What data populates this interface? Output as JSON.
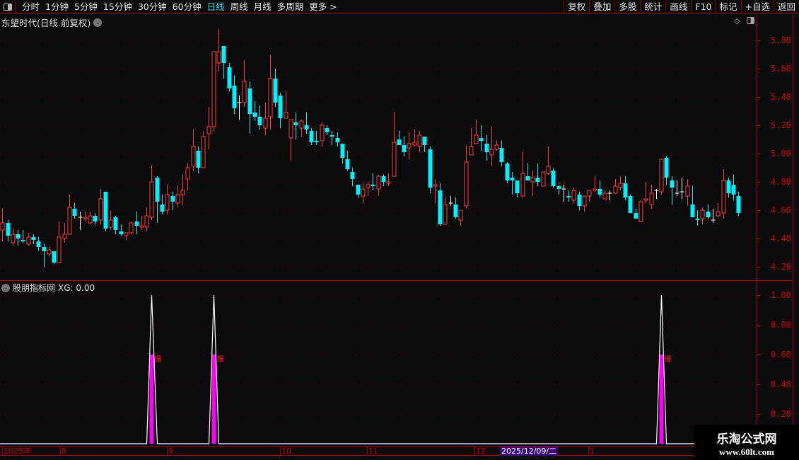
{
  "toolbar": {
    "tabs": [
      "分时",
      "1分钟",
      "5分钟",
      "15分钟",
      "30分钟",
      "60分钟",
      "日线",
      "周线",
      "月线",
      "多周期",
      "更多 >"
    ],
    "active_tab": "日线",
    "right_buttons": [
      "复权",
      "叠加",
      "多股",
      "统计",
      "画线",
      "F10",
      "标记",
      "+自选",
      "返回"
    ]
  },
  "chart_title": "东望时代(日线.前复权)",
  "indicator_title": "股朋指标网",
  "indicator_value": "XG: 0.00",
  "signal_label": "爆",
  "colors": {
    "up": "#ff3c3c",
    "down": "#00f0ff",
    "doji": "#ffffff",
    "signal_bar": "#ff00ff",
    "axis": "#d00000",
    "grid": "#5a0000"
  },
  "price_axis": [
    "5.80",
    "5.60",
    "5.40",
    "5.20",
    "5.00",
    "4.80",
    "4.60",
    "4.40",
    "4.20"
  ],
  "indicator_axis": [
    "1.00",
    "0.80",
    "0.60",
    "0.40",
    "0.20"
  ],
  "date_axis": [
    "2025年",
    "8",
    "9",
    "10",
    "11",
    "12",
    "2025/12/09/二",
    "1"
  ],
  "watermark": {
    "name": "乐淘公式网",
    "url": "www.60lt.com"
  },
  "chart_data": {
    "type": "candlestick",
    "ylim": [
      4.2,
      5.8
    ],
    "indicator_ylim": [
      0,
      1
    ],
    "signal_bar_value": 0.6,
    "candles_ohlc_xg": [
      [
        4.46,
        4.61,
        4.38,
        4.51,
        0
      ],
      [
        4.51,
        4.53,
        4.38,
        4.42,
        0
      ],
      [
        4.37,
        4.47,
        4.35,
        4.43,
        0
      ],
      [
        4.43,
        4.46,
        4.35,
        4.4,
        0
      ],
      [
        4.39,
        4.46,
        4.37,
        4.38,
        0
      ],
      [
        4.36,
        4.44,
        4.35,
        4.41,
        0
      ],
      [
        4.41,
        4.43,
        4.36,
        4.39,
        0
      ],
      [
        4.38,
        4.41,
        4.31,
        4.34,
        0
      ],
      [
        4.34,
        4.36,
        4.2,
        4.31,
        0
      ],
      [
        4.29,
        4.34,
        4.27,
        4.32,
        0
      ],
      [
        4.31,
        4.31,
        4.22,
        4.23,
        0
      ],
      [
        4.23,
        4.52,
        4.23,
        4.41,
        0
      ],
      [
        4.4,
        4.51,
        4.37,
        4.43,
        0
      ],
      [
        4.43,
        4.71,
        4.43,
        4.62,
        0
      ],
      [
        4.61,
        4.65,
        4.54,
        4.56,
        0
      ],
      [
        4.55,
        4.59,
        4.46,
        4.55,
        0
      ],
      [
        4.54,
        4.59,
        4.52,
        4.55,
        0
      ],
      [
        4.51,
        4.59,
        4.5,
        4.56,
        0
      ],
      [
        4.56,
        4.58,
        4.5,
        4.52,
        0
      ],
      [
        4.53,
        4.75,
        4.5,
        4.68,
        0
      ],
      [
        4.73,
        4.73,
        4.45,
        4.47,
        0
      ],
      [
        4.48,
        4.6,
        4.46,
        4.53,
        0
      ],
      [
        4.55,
        4.56,
        4.43,
        4.46,
        0
      ],
      [
        4.45,
        4.5,
        4.42,
        4.43,
        0
      ],
      [
        4.42,
        4.44,
        4.39,
        4.44,
        0
      ],
      [
        4.44,
        4.52,
        4.43,
        4.51,
        0
      ],
      [
        4.52,
        4.59,
        4.43,
        4.49,
        0
      ],
      [
        4.48,
        4.56,
        4.46,
        4.49,
        0
      ],
      [
        4.48,
        4.62,
        4.45,
        4.56,
        0
      ],
      [
        4.55,
        4.92,
        4.53,
        4.8,
        1
      ],
      [
        4.83,
        4.84,
        4.51,
        4.66,
        0
      ],
      [
        4.64,
        4.71,
        4.57,
        4.59,
        0
      ],
      [
        4.6,
        4.78,
        4.57,
        4.71,
        0
      ],
      [
        4.7,
        4.73,
        4.6,
        4.66,
        0
      ],
      [
        4.65,
        4.77,
        4.62,
        4.71,
        0
      ],
      [
        4.71,
        4.85,
        4.64,
        4.74,
        0
      ],
      [
        4.82,
        4.93,
        4.74,
        4.9,
        0
      ],
      [
        4.91,
        5.17,
        4.88,
        5.05,
        0
      ],
      [
        5.02,
        5.05,
        4.86,
        4.9,
        0
      ],
      [
        4.9,
        5.16,
        4.9,
        5.12,
        0
      ],
      [
        5.14,
        5.33,
        5.03,
        5.19,
        0
      ],
      [
        5.19,
        5.72,
        5.16,
        5.72,
        1
      ],
      [
        5.64,
        5.88,
        5.58,
        5.72,
        0
      ],
      [
        5.76,
        5.76,
        5.53,
        5.64,
        0
      ],
      [
        5.61,
        5.64,
        5.44,
        5.46,
        0
      ],
      [
        5.48,
        5.55,
        5.28,
        5.32,
        0
      ],
      [
        5.36,
        5.41,
        5.24,
        5.36,
        0
      ],
      [
        5.36,
        5.66,
        5.33,
        5.51,
        0
      ],
      [
        5.46,
        5.51,
        5.14,
        5.28,
        0
      ],
      [
        5.29,
        5.37,
        5.23,
        5.26,
        0
      ],
      [
        5.26,
        5.34,
        5.17,
        5.2,
        0
      ],
      [
        5.18,
        5.36,
        5.13,
        5.25,
        0
      ],
      [
        5.26,
        5.7,
        5.17,
        5.53,
        0
      ],
      [
        5.53,
        5.6,
        5.33,
        5.36,
        0
      ],
      [
        5.41,
        5.43,
        5.18,
        5.25,
        0
      ],
      [
        5.25,
        5.44,
        5.25,
        5.29,
        0
      ],
      [
        5.11,
        5.24,
        4.95,
        5.24,
        0
      ],
      [
        5.22,
        5.29,
        5.1,
        5.2,
        0
      ],
      [
        5.18,
        5.24,
        5.12,
        5.23,
        0
      ],
      [
        5.2,
        5.29,
        5.14,
        5.17,
        0
      ],
      [
        5.16,
        5.18,
        5.06,
        5.08,
        0
      ],
      [
        5.09,
        5.16,
        5.06,
        5.08,
        0
      ],
      [
        5.09,
        5.22,
        5.05,
        5.2,
        0
      ],
      [
        5.18,
        5.2,
        5.13,
        5.15,
        0
      ],
      [
        5.13,
        5.16,
        5.06,
        5.12,
        0
      ],
      [
        5.11,
        5.15,
        5.05,
        5.08,
        0
      ],
      [
        5.07,
        5.07,
        4.93,
        4.97,
        0
      ],
      [
        4.96,
        5.02,
        4.88,
        4.89,
        0
      ],
      [
        4.87,
        4.9,
        4.77,
        4.82,
        0
      ],
      [
        4.78,
        4.78,
        4.69,
        4.71,
        0
      ],
      [
        4.7,
        4.79,
        4.65,
        4.75,
        0
      ],
      [
        4.76,
        4.8,
        4.7,
        4.78,
        0
      ],
      [
        4.78,
        4.86,
        4.74,
        4.77,
        0
      ],
      [
        4.75,
        4.85,
        4.7,
        4.84,
        0
      ],
      [
        4.84,
        4.85,
        4.77,
        4.8,
        0
      ],
      [
        4.79,
        4.86,
        4.77,
        4.8,
        0
      ],
      [
        4.84,
        5.29,
        4.84,
        5.08,
        0
      ],
      [
        5.1,
        5.16,
        5.06,
        5.06,
        0
      ],
      [
        5.06,
        5.12,
        4.98,
        5.01,
        0
      ],
      [
        5.04,
        5.15,
        4.96,
        5.07,
        0
      ],
      [
        5.06,
        5.17,
        5.05,
        5.08,
        0
      ],
      [
        5.05,
        5.16,
        5.01,
        5.13,
        0
      ],
      [
        5.12,
        5.12,
        5.01,
        5.06,
        0
      ],
      [
        5.03,
        5.05,
        4.72,
        4.76,
        0
      ],
      [
        4.77,
        4.82,
        4.65,
        4.78,
        0
      ],
      [
        4.74,
        4.79,
        4.49,
        4.5,
        0
      ],
      [
        4.5,
        4.69,
        4.5,
        4.64,
        0
      ],
      [
        4.65,
        4.7,
        4.63,
        4.65,
        0
      ],
      [
        4.64,
        4.69,
        4.54,
        4.55,
        0
      ],
      [
        4.53,
        4.6,
        4.49,
        4.6,
        0
      ],
      [
        4.63,
        5.06,
        4.61,
        4.94,
        0
      ],
      [
        4.99,
        5.18,
        4.99,
        5.05,
        0
      ],
      [
        5.07,
        5.24,
        5.07,
        5.13,
        0
      ],
      [
        5.11,
        5.2,
        5.02,
        5.09,
        0
      ],
      [
        5.07,
        5.13,
        4.95,
        5.01,
        0
      ],
      [
        4.99,
        5.19,
        4.91,
        5.03,
        0
      ],
      [
        5.03,
        5.09,
        5.02,
        5.06,
        0
      ],
      [
        5.04,
        5.09,
        4.91,
        4.94,
        0
      ],
      [
        4.93,
        4.94,
        4.79,
        4.81,
        0
      ],
      [
        4.83,
        4.87,
        4.71,
        4.81,
        0
      ],
      [
        4.81,
        4.81,
        4.69,
        4.72,
        0
      ],
      [
        4.7,
        5.01,
        4.69,
        4.86,
        0
      ],
      [
        4.84,
        4.93,
        4.81,
        4.81,
        0
      ],
      [
        4.8,
        4.88,
        4.7,
        4.83,
        0
      ],
      [
        4.83,
        4.93,
        4.77,
        4.8,
        0
      ],
      [
        4.77,
        4.87,
        4.77,
        4.87,
        0
      ],
      [
        4.86,
        5.05,
        4.85,
        4.91,
        0
      ],
      [
        4.88,
        4.9,
        4.76,
        4.77,
        0
      ],
      [
        4.77,
        4.78,
        4.71,
        4.75,
        0
      ],
      [
        4.75,
        4.78,
        4.66,
        4.75,
        0
      ],
      [
        4.7,
        4.74,
        4.66,
        4.69,
        0
      ],
      [
        4.67,
        4.76,
        4.65,
        4.74,
        0
      ],
      [
        4.71,
        4.73,
        4.6,
        4.63,
        0
      ],
      [
        4.63,
        4.7,
        4.59,
        4.7,
        0
      ],
      [
        4.7,
        4.74,
        4.66,
        4.74,
        0
      ],
      [
        4.74,
        4.84,
        4.73,
        4.75,
        0
      ],
      [
        4.75,
        4.81,
        4.69,
        4.71,
        0
      ],
      [
        4.68,
        4.74,
        4.68,
        4.72,
        0
      ],
      [
        4.72,
        4.74,
        4.67,
        4.72,
        0
      ],
      [
        4.72,
        4.82,
        4.72,
        4.77,
        0
      ],
      [
        4.76,
        4.84,
        4.74,
        4.79,
        0
      ],
      [
        4.79,
        4.84,
        4.67,
        4.69,
        0
      ],
      [
        4.7,
        4.71,
        4.58,
        4.58,
        0
      ],
      [
        4.58,
        4.61,
        4.54,
        4.54,
        0
      ],
      [
        4.52,
        4.67,
        4.52,
        4.66,
        0
      ],
      [
        4.67,
        4.8,
        4.65,
        4.68,
        0
      ],
      [
        4.64,
        4.78,
        4.61,
        4.72,
        0
      ],
      [
        4.74,
        4.75,
        4.68,
        4.74,
        0
      ],
      [
        4.73,
        4.96,
        4.71,
        4.96,
        1
      ],
      [
        4.97,
        4.98,
        4.78,
        4.83,
        0
      ],
      [
        4.81,
        4.84,
        4.64,
        4.76,
        0
      ],
      [
        4.72,
        4.81,
        4.7,
        4.72,
        0
      ],
      [
        4.73,
        4.83,
        4.68,
        4.73,
        0
      ],
      [
        4.7,
        4.82,
        4.63,
        4.77,
        0
      ],
      [
        4.64,
        4.77,
        4.55,
        4.55,
        0
      ],
      [
        4.54,
        4.6,
        4.49,
        4.53,
        0
      ],
      [
        4.54,
        4.62,
        4.5,
        4.6,
        0
      ],
      [
        4.59,
        4.64,
        4.54,
        4.55,
        0
      ],
      [
        4.53,
        4.61,
        4.51,
        4.53,
        0
      ],
      [
        4.56,
        4.65,
        4.55,
        4.59,
        0
      ],
      [
        4.58,
        4.89,
        4.54,
        4.81,
        0
      ],
      [
        4.81,
        4.83,
        4.69,
        4.72,
        0
      ],
      [
        4.78,
        4.85,
        4.67,
        4.71,
        0
      ],
      [
        4.7,
        4.73,
        4.56,
        4.58,
        0
      ]
    ]
  }
}
